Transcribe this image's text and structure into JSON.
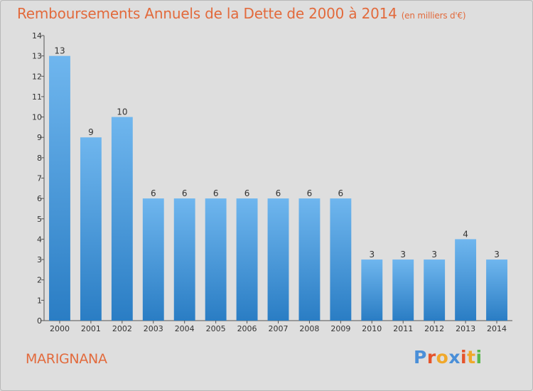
{
  "title": "Remboursements Annuels de la Dette de 2000 à 2014",
  "unit": "(en milliers d'€)",
  "place": "MARIGNANA",
  "logo": {
    "text": "Proxiti",
    "colors": [
      "#4a8fd8",
      "#e5542b",
      "#f0a82a",
      "#4a8fd8",
      "#e5542b",
      "#f0a82a",
      "#58b84c"
    ]
  },
  "colors": {
    "bar_light": "#6fb6ee",
    "bar_dark": "#2a7dc4",
    "title": "#e26a3c",
    "background": "#dedede"
  },
  "chart_data": {
    "type": "bar",
    "title": "Remboursements Annuels de la Dette de 2000 à 2014",
    "categories": [
      "2000",
      "2001",
      "2002",
      "2003",
      "2004",
      "2005",
      "2006",
      "2007",
      "2008",
      "2009",
      "2010",
      "2011",
      "2012",
      "2013",
      "2014"
    ],
    "values": [
      13,
      9,
      10,
      6,
      6,
      6,
      6,
      6,
      6,
      6,
      3,
      3,
      3,
      4,
      3
    ],
    "ylim": [
      0,
      14
    ],
    "yticks": [
      0,
      1,
      2,
      3,
      4,
      5,
      6,
      7,
      8,
      9,
      10,
      11,
      12,
      13,
      14
    ],
    "xlabel": "",
    "ylabel": ""
  }
}
